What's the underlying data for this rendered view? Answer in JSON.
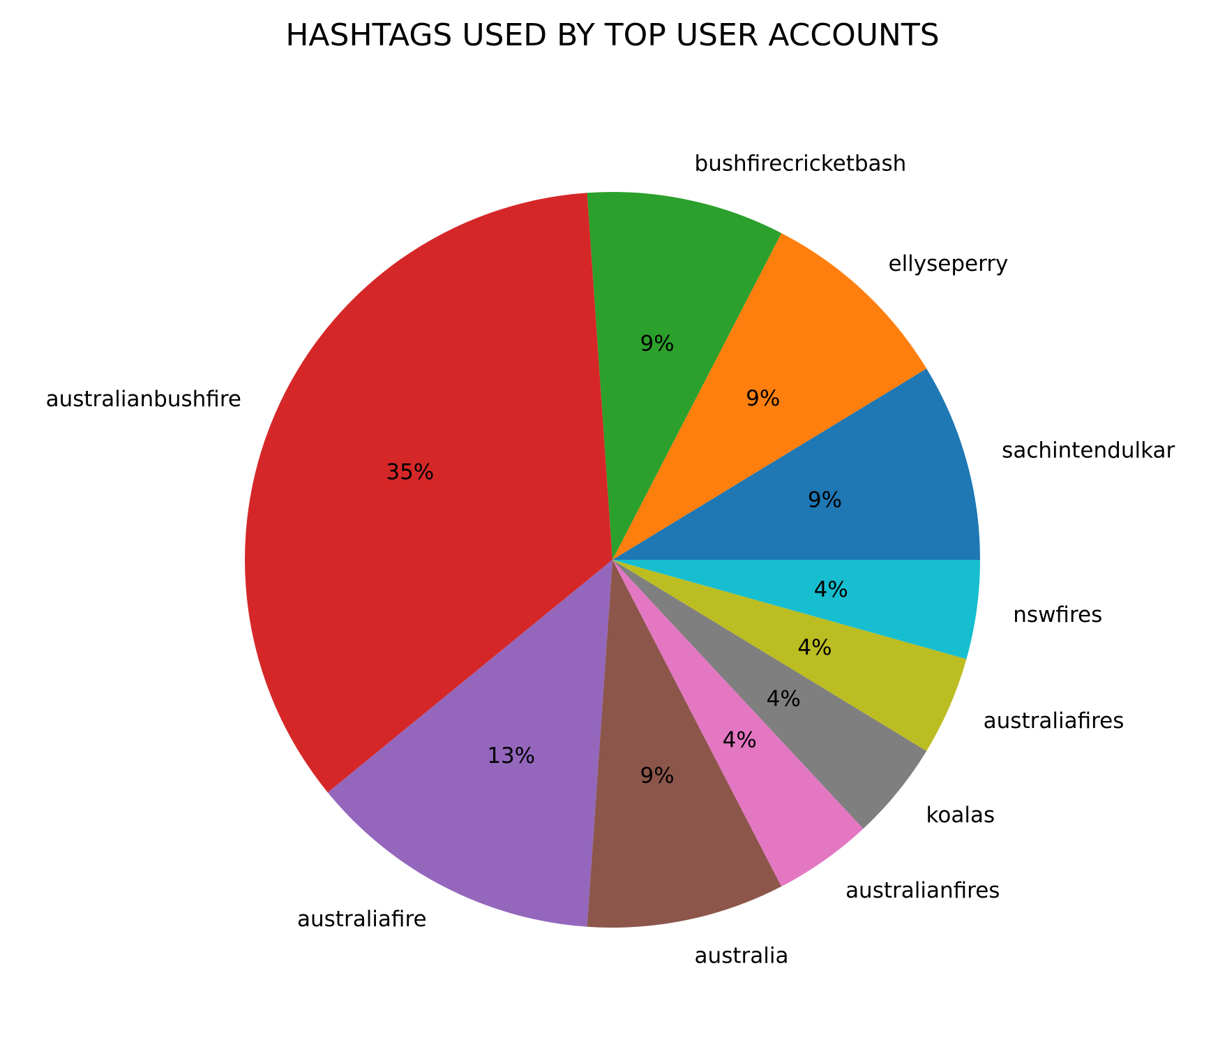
{
  "chart_data": {
    "type": "pie",
    "title": "HASHTAGS USED BY TOP USER ACCOUNTS",
    "start_angle_deg": 0,
    "direction": "counterclockwise",
    "slices": [
      {
        "label": "sachintendulkar",
        "value": 8.7,
        "pct_label": "9%",
        "color": "#1f77b4"
      },
      {
        "label": "ellyseperry",
        "value": 8.7,
        "pct_label": "9%",
        "color": "#ff7f0e"
      },
      {
        "label": "bushfirecricketbash",
        "value": 8.7,
        "pct_label": "9%",
        "color": "#2ca02c"
      },
      {
        "label": "australianbushfire",
        "value": 34.8,
        "pct_label": "35%",
        "color": "#d62728"
      },
      {
        "label": "australiafire",
        "value": 13.0,
        "pct_label": "13%",
        "color": "#9467bd"
      },
      {
        "label": "australia",
        "value": 8.7,
        "pct_label": "9%",
        "color": "#8c564b"
      },
      {
        "label": "australianfires",
        "value": 4.35,
        "pct_label": "4%",
        "color": "#e377c2"
      },
      {
        "label": "koalas",
        "value": 4.35,
        "pct_label": "4%",
        "color": "#7f7f7f"
      },
      {
        "label": "australiafires",
        "value": 4.35,
        "pct_label": "4%",
        "color": "#bcbd22"
      },
      {
        "label": "nswfires",
        "value": 4.35,
        "pct_label": "4%",
        "color": "#17becf"
      }
    ]
  }
}
